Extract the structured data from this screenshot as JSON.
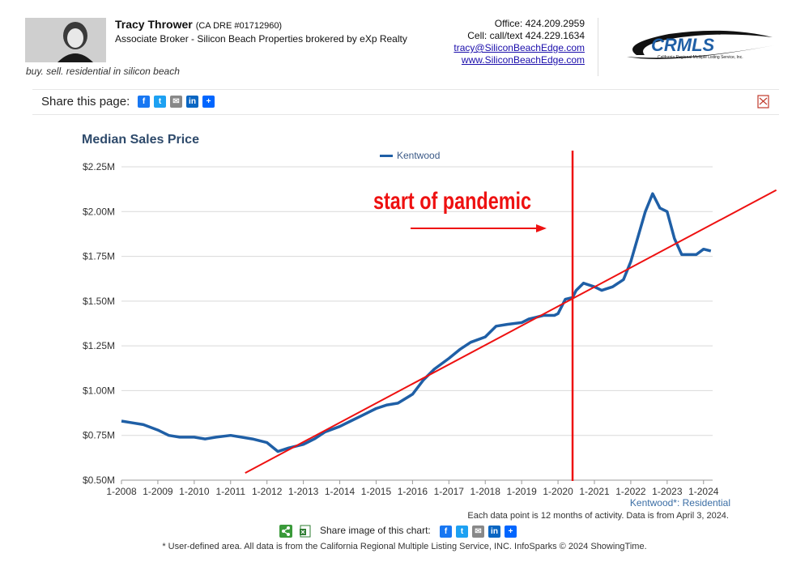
{
  "header": {
    "agent_name": "Tracy Thrower",
    "agent_dre": "(CA DRE #01712960)",
    "agent_title": "Associate Broker - Silicon Beach Properties brokered by eXp Realty",
    "tagline": "buy. sell. residential in silicon beach",
    "office": "Office: 424.209.2959",
    "cell": "Cell: call/text 424.229.1634",
    "email": "tracy@SiliconBeachEdge.com",
    "website": "www.SiliconBeachEdge.com",
    "logo_text": "CRMLS",
    "logo_subtext": "California Regional Multiple Listing Service, Inc."
  },
  "share": {
    "label": "Share this page:",
    "icons": [
      "facebook-icon",
      "twitter-icon",
      "email-icon",
      "linkedin-icon",
      "plus-icon"
    ]
  },
  "chart_data": {
    "type": "line",
    "title": "Median Sales Price",
    "legend": "top-center",
    "grid": true,
    "ylim": [
      0.5,
      2.25
    ],
    "y_ticks": [
      "$0.50M",
      "$0.75M",
      "$1.00M",
      "$1.25M",
      "$1.50M",
      "$1.75M",
      "$2.00M",
      "$2.25M"
    ],
    "x_ticks": [
      "1-2008",
      "1-2009",
      "1-2010",
      "1-2011",
      "1-2012",
      "1-2013",
      "1-2014",
      "1-2015",
      "1-2016",
      "1-2017",
      "1-2018",
      "1-2019",
      "1-2020",
      "1-2021",
      "1-2022",
      "1-2023",
      "1-2024"
    ],
    "series": [
      {
        "name": "Kentwood",
        "color": "#1f5fa6",
        "x": [
          2008.0,
          2008.3,
          2008.6,
          2009.0,
          2009.3,
          2009.6,
          2010.0,
          2010.3,
          2010.6,
          2011.0,
          2011.3,
          2011.6,
          2012.0,
          2012.3,
          2012.6,
          2013.0,
          2013.3,
          2013.6,
          2014.0,
          2014.3,
          2014.6,
          2015.0,
          2015.3,
          2015.6,
          2016.0,
          2016.3,
          2016.6,
          2017.0,
          2017.3,
          2017.6,
          2018.0,
          2018.3,
          2018.6,
          2019.0,
          2019.2,
          2019.4,
          2019.6,
          2019.9,
          2020.0,
          2020.2,
          2020.4,
          2020.5,
          2020.7,
          2021.0,
          2021.2,
          2021.5,
          2021.8,
          2022.0,
          2022.2,
          2022.4,
          2022.6,
          2022.8,
          2023.0,
          2023.2,
          2023.4,
          2023.6,
          2023.8,
          2024.0,
          2024.2
        ],
        "values": [
          0.83,
          0.82,
          0.81,
          0.78,
          0.75,
          0.74,
          0.74,
          0.73,
          0.74,
          0.75,
          0.74,
          0.73,
          0.71,
          0.66,
          0.68,
          0.7,
          0.73,
          0.77,
          0.8,
          0.83,
          0.86,
          0.9,
          0.92,
          0.93,
          0.98,
          1.06,
          1.12,
          1.18,
          1.23,
          1.27,
          1.3,
          1.36,
          1.37,
          1.38,
          1.4,
          1.41,
          1.42,
          1.42,
          1.43,
          1.51,
          1.52,
          1.56,
          1.6,
          1.58,
          1.56,
          1.58,
          1.62,
          1.72,
          1.86,
          2.0,
          2.1,
          2.02,
          2.0,
          1.85,
          1.76,
          1.76,
          1.76,
          1.79,
          1.78
        ]
      }
    ],
    "annotations": {
      "text": "start of pandemic",
      "vertical_line_x": 2020.4,
      "trend_line": [
        [
          2011.4,
          0.54
        ],
        [
          2026.0,
          2.12
        ]
      ]
    }
  },
  "source_note": "Kentwood*: Residential",
  "data_note": "Each data point is 12 months of activity. Data is from April 3, 2024.",
  "share_image_label": "Share image of this chart:",
  "footer": "* User-defined area. All data is from the California Regional Multiple Listing Service, INC. InfoSparks © 2024 ShowingTime.",
  "colors": {
    "line": "#1f5fa6",
    "annotation": "#ee1111",
    "title": "#2e4a6b"
  }
}
